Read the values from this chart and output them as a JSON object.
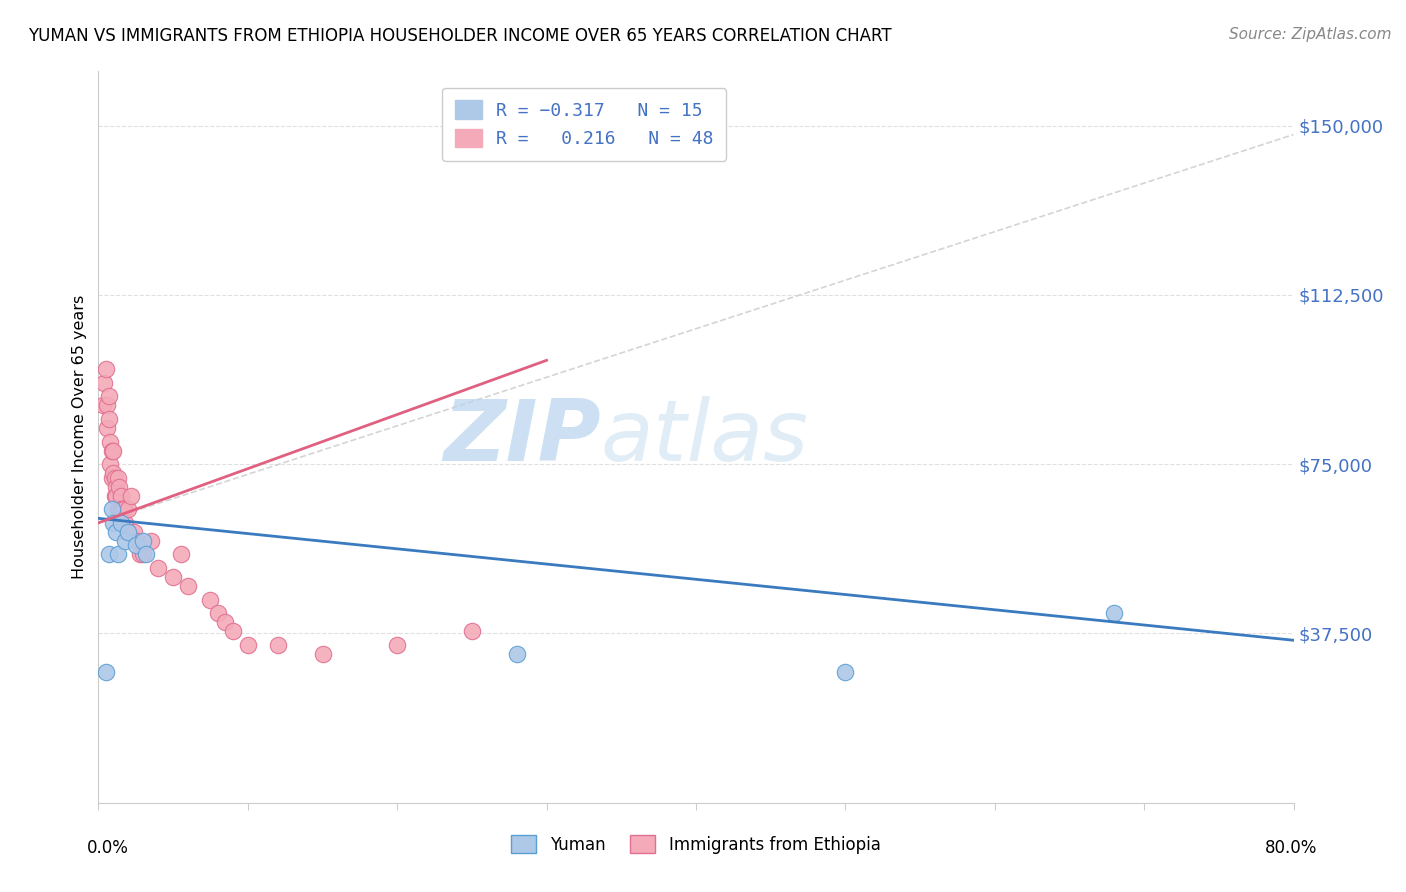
{
  "title": "YUMAN VS IMMIGRANTS FROM ETHIOPIA HOUSEHOLDER INCOME OVER 65 YEARS CORRELATION CHART",
  "source": "Source: ZipAtlas.com",
  "ylabel": "Householder Income Over 65 years",
  "yticks": [
    0,
    37500,
    75000,
    112500,
    150000
  ],
  "ytick_labels": [
    "",
    "$37,500",
    "$75,000",
    "$112,500",
    "$150,000"
  ],
  "xlim": [
    0.0,
    0.8
  ],
  "ylim": [
    0,
    162000
  ],
  "yuman_scatter": {
    "x": [
      0.005,
      0.007,
      0.009,
      0.01,
      0.012,
      0.013,
      0.015,
      0.018,
      0.02,
      0.025,
      0.03,
      0.032,
      0.28,
      0.5,
      0.68
    ],
    "y": [
      29000,
      55000,
      65000,
      62000,
      60000,
      55000,
      62000,
      58000,
      60000,
      57000,
      58000,
      55000,
      33000,
      29000,
      42000
    ],
    "color": "#aec8e8",
    "edge_color": "#5a9fd4",
    "size": 140
  },
  "ethiopia_scatter": {
    "x": [
      0.003,
      0.004,
      0.005,
      0.006,
      0.006,
      0.007,
      0.007,
      0.008,
      0.008,
      0.009,
      0.009,
      0.01,
      0.01,
      0.011,
      0.011,
      0.012,
      0.012,
      0.013,
      0.013,
      0.014,
      0.014,
      0.015,
      0.015,
      0.016,
      0.016,
      0.017,
      0.018,
      0.019,
      0.02,
      0.022,
      0.024,
      0.026,
      0.028,
      0.03,
      0.035,
      0.04,
      0.05,
      0.055,
      0.06,
      0.075,
      0.08,
      0.085,
      0.09,
      0.1,
      0.12,
      0.15,
      0.2,
      0.25
    ],
    "y": [
      88000,
      93000,
      96000,
      88000,
      83000,
      90000,
      85000,
      80000,
      75000,
      78000,
      72000,
      78000,
      73000,
      72000,
      68000,
      70000,
      68000,
      72000,
      65000,
      70000,
      65000,
      68000,
      65000,
      65000,
      62000,
      65000,
      62000,
      60000,
      65000,
      68000,
      60000,
      58000,
      55000,
      55000,
      58000,
      52000,
      50000,
      55000,
      48000,
      45000,
      42000,
      40000,
      38000,
      35000,
      35000,
      33000,
      35000,
      38000
    ],
    "color": "#f4aab8",
    "edge_color": "#e07090",
    "size": 140
  },
  "yuman_trend": {
    "x": [
      0.0,
      0.8
    ],
    "y": [
      63000,
      36000
    ],
    "color": "#3a7abf",
    "linewidth": 2.0,
    "linestyle": "solid"
  },
  "ethiopia_trend_solid": {
    "x": [
      0.0,
      0.3
    ],
    "y": [
      62000,
      98000
    ],
    "color": "#e06080",
    "linewidth": 2.0,
    "linestyle": "solid"
  },
  "ethiopia_trend_dashed": {
    "x": [
      0.0,
      0.8
    ],
    "y": [
      62000,
      148000
    ],
    "color": "#d0d0d0",
    "linewidth": 1.2,
    "linestyle": "dashed"
  },
  "watermark_zip": "ZIP",
  "watermark_atlas": "atlas",
  "watermark_color": "#c8dff0",
  "background_color": "#ffffff",
  "grid_color": "#e0e0e0",
  "title_fontsize": 12,
  "source_color": "#888888"
}
